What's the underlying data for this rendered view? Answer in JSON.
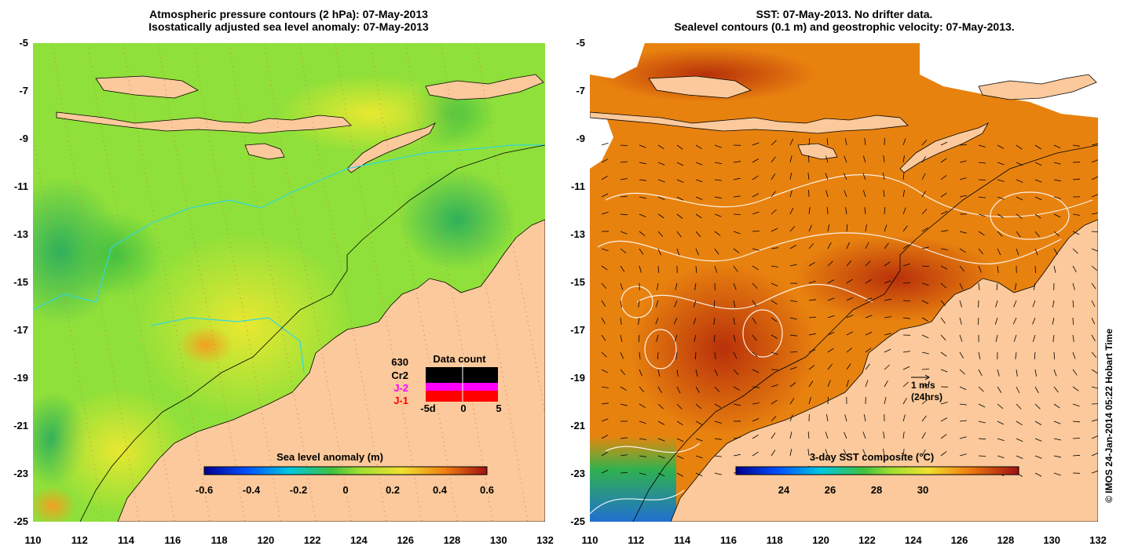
{
  "left_panel": {
    "title_line1": "Atmospheric pressure contours (2 hPa): 07-May-2013",
    "title_line2": "Isostatically adjusted sea level anomaly: 07-May-2013",
    "y_ticks": [
      "-5",
      "-7",
      "-9",
      "-11",
      "-13",
      "-15",
      "-17",
      "-19",
      "-21",
      "-23",
      "-25"
    ],
    "x_ticks": [
      "110",
      "112",
      "114",
      "116",
      "118",
      "120",
      "122",
      "124",
      "126",
      "128",
      "130",
      "132"
    ],
    "colorbar_label": "Sea level anomaly (m)",
    "colorbar_ticks": [
      "-0.6",
      "-0.4",
      "-0.2",
      "0",
      "0.2",
      "0.4",
      "0.6"
    ],
    "data_count": {
      "title": "Data count",
      "total": "630",
      "missions": [
        {
          "label": "Cr2",
          "color": "#000000"
        },
        {
          "label": "J-2",
          "color": "#ff00ff"
        },
        {
          "label": "J-1",
          "color": "#ff0000"
        }
      ],
      "x_ticks": [
        "-5d",
        "0",
        "5"
      ]
    }
  },
  "right_panel": {
    "title_line1": "SST: 07-May-2013. No drifter data.",
    "title_line2": "Sealevel contours (0.1 m) and geostrophic velocity: 07-May-2013.",
    "y_ticks": [
      "-5",
      "-7",
      "-9",
      "-11",
      "-13",
      "-15",
      "-17",
      "-19",
      "-21",
      "-23",
      "-25"
    ],
    "x_ticks": [
      "110",
      "112",
      "114",
      "116",
      "118",
      "120",
      "122",
      "124",
      "126",
      "128",
      "130",
      "132"
    ],
    "colorbar_label": "3-day SST composite (°C)",
    "colorbar_ticks": [
      "24",
      "26",
      "28",
      "30"
    ],
    "velocity_scale": {
      "line1": "1 m/s",
      "line2": "(24hrs)"
    }
  },
  "credit": "© IMOS 24-Jan-2014 05:22 Hobart Time",
  "colors": {
    "land": "#fbc99b",
    "sla_background": "#8fe03a",
    "sst_background": "#e8820f",
    "sst_hot": "#b8300a"
  }
}
